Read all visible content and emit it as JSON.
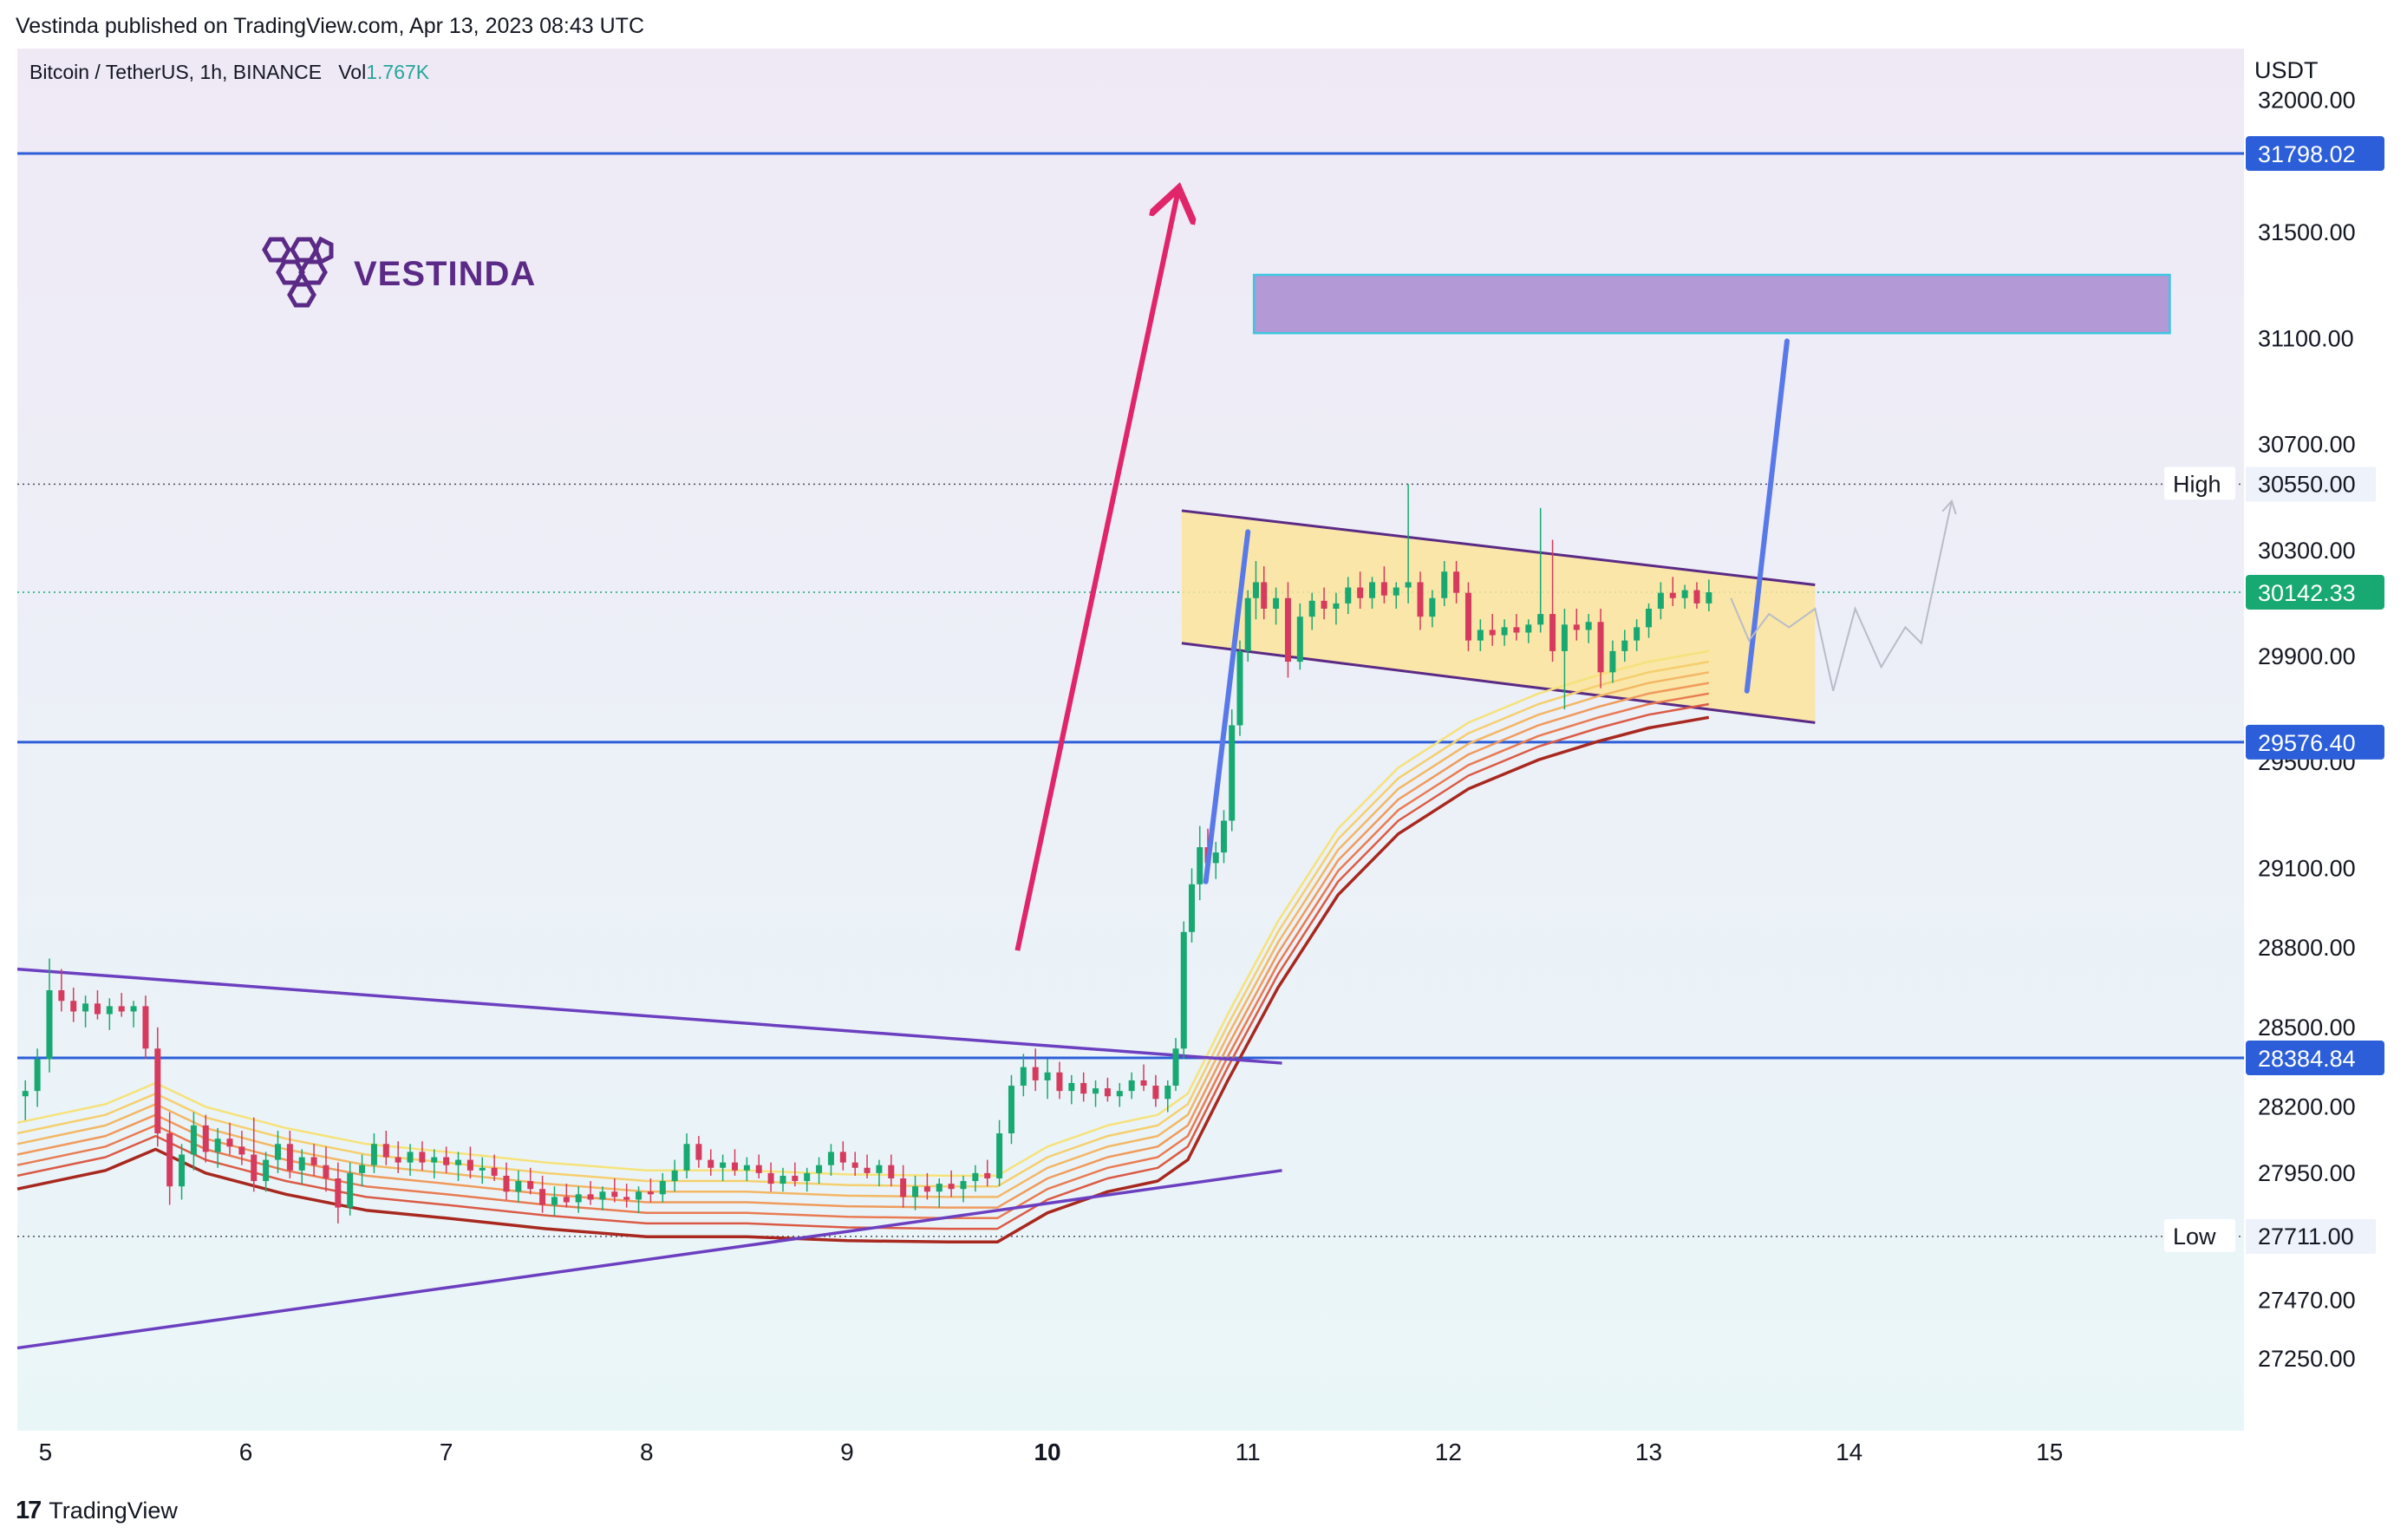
{
  "publisher": "Vestinda published on TradingView.com, Apr 13, 2023 08:43 UTC",
  "legend": {
    "symbol": "Bitcoin / TetherUS, 1h, BINANCE",
    "vol_label": "Vol",
    "vol_value": "1.767K"
  },
  "brand": {
    "name": "VESTINDA",
    "icon": "hexagon-cluster-logo-icon"
  },
  "footer": {
    "logo_text": "TradingView",
    "logo_icon": "tradingview-logo-icon"
  },
  "colors": {
    "background_top": "#efe9f6",
    "background_bottom": "#e9f7f8",
    "horizontal_level": "#2b5ed8",
    "trend_line": "#6c3fc0",
    "impulse_arrow": "#e0256a",
    "projection": "#5a79e8",
    "flag_fill": "#fbe49a",
    "target_zone": "#b39ad6",
    "target_zone_border": "#3ec6e0",
    "up_candle": "#17a971",
    "down_candle": "#d63a5c",
    "current_price_badge": "#17a971"
  },
  "chart_data": {
    "type": "candlestick",
    "symbol": "Bitcoin / TetherUS",
    "interval": "1h",
    "exchange": "BINANCE",
    "currency_label": "USDT",
    "x_ticks": [
      {
        "label": "5",
        "day": 5,
        "bold": false
      },
      {
        "label": "6",
        "day": 6,
        "bold": false
      },
      {
        "label": "7",
        "day": 7,
        "bold": false
      },
      {
        "label": "8",
        "day": 8,
        "bold": false
      },
      {
        "label": "9",
        "day": 9,
        "bold": false
      },
      {
        "label": "10",
        "day": 10,
        "bold": true
      },
      {
        "label": "11",
        "day": 11,
        "bold": false
      },
      {
        "label": "12",
        "day": 12,
        "bold": false
      },
      {
        "label": "13",
        "day": 13,
        "bold": false
      },
      {
        "label": "14",
        "day": 14,
        "bold": false
      },
      {
        "label": "15",
        "day": 15,
        "bold": false
      }
    ],
    "x_range": [
      4.86,
      15.97
    ],
    "y_ticks": [
      "32000.00",
      "31500.00",
      "31100.00",
      "30700.00",
      "30300.00",
      "29900.00",
      "29500.00",
      "29100.00",
      "28800.00",
      "28500.00",
      "28200.00",
      "27950.00",
      "27470.00",
      "27250.00"
    ],
    "y_tick_values": [
      32000,
      31500,
      31100,
      30700,
      30300,
      29900,
      29500,
      29100,
      28800,
      28500,
      28200,
      27950,
      27470,
      27250
    ],
    "horizontal_levels": [
      {
        "label": "31798.02",
        "value": 31798.02
      },
      {
        "label": "29576.40",
        "value": 29576.4
      },
      {
        "label": "28384.84",
        "value": 28384.84
      }
    ],
    "high": {
      "label": "High",
      "value_label": "30550.00",
      "value": 30550
    },
    "low": {
      "label": "Low",
      "value_label": "27711.00",
      "value": 27711
    },
    "last_price": {
      "label": "30142.33",
      "value": 30142.33
    },
    "target_zone": {
      "x_start": 11.03,
      "x_end": 15.6,
      "top": 31340,
      "bottom": 31120
    },
    "flag_channel": {
      "x_start": 10.67,
      "x_end": 13.83,
      "top_start": 30450,
      "top_end": 30170,
      "bottom_start": 29950,
      "bottom_end": 29650
    },
    "trend_lines": [
      {
        "name": "descending-trend-line",
        "x1": 4.86,
        "y1": 28720,
        "x2": 11.17,
        "y2": 28365
      },
      {
        "name": "ascending-trend-line",
        "x1": 4.86,
        "y1": 27290,
        "x2": 11.17,
        "y2": 27960
      }
    ],
    "impulse_arrow": {
      "x1": 9.85,
      "y1": 28790,
      "x2": 10.65,
      "y2": 31650
    },
    "flagpole_line": {
      "x1": 10.79,
      "y1": 29050,
      "x2": 11.0,
      "y2": 30370
    },
    "projection_line": {
      "x1": 13.49,
      "y1": 29770,
      "x2": 13.69,
      "y2": 31090
    },
    "projected_path": [
      [
        13.41,
        30120
      ],
      [
        13.5,
        29960
      ],
      [
        13.6,
        30060
      ],
      [
        13.7,
        30010
      ],
      [
        13.83,
        30080
      ],
      [
        13.92,
        29770
      ],
      [
        14.03,
        30080
      ],
      [
        14.16,
        29860
      ],
      [
        14.28,
        30010
      ],
      [
        14.36,
        29950
      ],
      [
        14.51,
        30480
      ]
    ],
    "ribbon_offsets": [
      0,
      40,
      80,
      120,
      160,
      200,
      250
    ],
    "ribbon_colors": [
      "#f6e27a",
      "#f5cf6e",
      "#f3b765",
      "#f09a5c",
      "#e97b52",
      "#db5a45",
      "#a8281f"
    ],
    "ribbon": [
      [
        4.86,
        28140
      ],
      [
        5.3,
        28210
      ],
      [
        5.55,
        28290
      ],
      [
        5.8,
        28200
      ],
      [
        6.2,
        28120
      ],
      [
        6.6,
        28060
      ],
      [
        7.0,
        28030
      ],
      [
        7.5,
        27990
      ],
      [
        8.0,
        27960
      ],
      [
        8.5,
        27960
      ],
      [
        9.0,
        27945
      ],
      [
        9.5,
        27940
      ],
      [
        9.75,
        27940
      ],
      [
        10.0,
        28050
      ],
      [
        10.3,
        28130
      ],
      [
        10.55,
        28170
      ],
      [
        10.7,
        28250
      ],
      [
        10.9,
        28550
      ],
      [
        11.15,
        28900
      ],
      [
        11.45,
        29250
      ],
      [
        11.75,
        29480
      ],
      [
        12.1,
        29650
      ],
      [
        12.45,
        29760
      ],
      [
        12.75,
        29830
      ],
      [
        13.0,
        29880
      ],
      [
        13.3,
        29920
      ]
    ],
    "candles": [
      [
        4.9,
        28240,
        28300,
        28150,
        28260
      ],
      [
        4.96,
        28260,
        28420,
        28200,
        28380
      ],
      [
        5.02,
        28380,
        28760,
        28330,
        28640
      ],
      [
        5.08,
        28640,
        28720,
        28560,
        28600
      ],
      [
        5.14,
        28600,
        28650,
        28520,
        28560
      ],
      [
        5.2,
        28560,
        28620,
        28500,
        28590
      ],
      [
        5.26,
        28590,
        28640,
        28530,
        28550
      ],
      [
        5.32,
        28550,
        28610,
        28490,
        28580
      ],
      [
        5.38,
        28580,
        28630,
        28540,
        28560
      ],
      [
        5.44,
        28560,
        28600,
        28500,
        28580
      ],
      [
        5.5,
        28580,
        28620,
        28380,
        28420
      ],
      [
        5.56,
        28420,
        28500,
        28050,
        28100
      ],
      [
        5.62,
        28100,
        28180,
        27830,
        27900
      ],
      [
        5.68,
        27900,
        28060,
        27850,
        28020
      ],
      [
        5.74,
        28020,
        28180,
        27960,
        28130
      ],
      [
        5.8,
        28130,
        28170,
        27990,
        28030
      ],
      [
        5.86,
        28030,
        28120,
        27970,
        28080
      ],
      [
        5.92,
        28080,
        28140,
        28020,
        28050
      ],
      [
        5.98,
        28050,
        28110,
        27980,
        28020
      ],
      [
        6.04,
        28020,
        28160,
        27880,
        27920
      ],
      [
        6.1,
        27920,
        28030,
        27880,
        28000
      ],
      [
        6.16,
        28000,
        28110,
        27950,
        28060
      ],
      [
        6.22,
        28060,
        28110,
        27930,
        27960
      ],
      [
        6.28,
        27960,
        28040,
        27910,
        28010
      ],
      [
        6.34,
        28010,
        28060,
        27940,
        27980
      ],
      [
        6.4,
        27980,
        28050,
        27880,
        27930
      ],
      [
        6.46,
        27930,
        27990,
        27760,
        27820
      ],
      [
        6.52,
        27820,
        27990,
        27790,
        27950
      ],
      [
        6.58,
        27950,
        28020,
        27900,
        27980
      ],
      [
        6.64,
        27980,
        28100,
        27950,
        28060
      ],
      [
        6.7,
        28060,
        28110,
        27980,
        28010
      ],
      [
        6.76,
        28010,
        28070,
        27950,
        27990
      ],
      [
        6.82,
        27990,
        28060,
        27940,
        28030
      ],
      [
        6.88,
        28030,
        28070,
        27960,
        27990
      ],
      [
        6.94,
        27990,
        28040,
        27930,
        28010
      ],
      [
        7.0,
        28010,
        28050,
        27950,
        27980
      ],
      [
        7.06,
        27980,
        28030,
        27920,
        28000
      ],
      [
        7.12,
        28000,
        28050,
        27930,
        27960
      ],
      [
        7.18,
        27960,
        28010,
        27910,
        27970
      ],
      [
        7.24,
        27970,
        28020,
        27920,
        27940
      ],
      [
        7.3,
        27940,
        27990,
        27850,
        27880
      ],
      [
        7.36,
        27880,
        27960,
        27840,
        27920
      ],
      [
        7.42,
        27920,
        27970,
        27870,
        27890
      ],
      [
        7.48,
        27890,
        27940,
        27800,
        27830
      ],
      [
        7.54,
        27830,
        27900,
        27790,
        27860
      ],
      [
        7.6,
        27860,
        27910,
        27820,
        27840
      ],
      [
        7.66,
        27840,
        27900,
        27800,
        27870
      ],
      [
        7.72,
        27870,
        27920,
        27830,
        27850
      ],
      [
        7.78,
        27850,
        27900,
        27810,
        27880
      ],
      [
        7.84,
        27880,
        27930,
        27840,
        27860
      ],
      [
        7.9,
        27860,
        27910,
        27820,
        27850
      ],
      [
        7.96,
        27850,
        27900,
        27800,
        27880
      ],
      [
        8.02,
        27880,
        27930,
        27840,
        27870
      ],
      [
        8.08,
        27870,
        27950,
        27840,
        27920
      ],
      [
        8.14,
        27920,
        28000,
        27880,
        27960
      ],
      [
        8.2,
        27960,
        28100,
        27930,
        28060
      ],
      [
        8.26,
        28060,
        28090,
        27970,
        28000
      ],
      [
        8.32,
        28000,
        28040,
        27940,
        27970
      ],
      [
        8.38,
        27970,
        28020,
        27920,
        27990
      ],
      [
        8.44,
        27990,
        28040,
        27940,
        27960
      ],
      [
        8.5,
        27960,
        28010,
        27920,
        27980
      ],
      [
        8.56,
        27980,
        28020,
        27930,
        27950
      ],
      [
        8.62,
        27950,
        27990,
        27880,
        27910
      ],
      [
        8.68,
        27910,
        27970,
        27880,
        27940
      ],
      [
        8.74,
        27940,
        27990,
        27900,
        27920
      ],
      [
        8.8,
        27920,
        27970,
        27880,
        27950
      ],
      [
        8.86,
        27950,
        28010,
        27910,
        27980
      ],
      [
        8.92,
        27980,
        28060,
        27940,
        28030
      ],
      [
        8.98,
        28030,
        28070,
        27960,
        27990
      ],
      [
        9.04,
        27990,
        28030,
        27940,
        27970
      ],
      [
        9.1,
        27970,
        28020,
        27930,
        27950
      ],
      [
        9.16,
        27950,
        28000,
        27900,
        27980
      ],
      [
        9.22,
        27980,
        28020,
        27900,
        27930
      ],
      [
        9.28,
        27930,
        27980,
        27820,
        27860
      ],
      [
        9.34,
        27860,
        27940,
        27810,
        27900
      ],
      [
        9.4,
        27900,
        27950,
        27850,
        27880
      ],
      [
        9.46,
        27880,
        27930,
        27820,
        27910
      ],
      [
        9.52,
        27910,
        27960,
        27860,
        27890
      ],
      [
        9.58,
        27890,
        27940,
        27840,
        27920
      ],
      [
        9.64,
        27920,
        27980,
        27880,
        27950
      ],
      [
        9.7,
        27950,
        28000,
        27900,
        27930
      ],
      [
        9.76,
        27930,
        28150,
        27900,
        28100
      ],
      [
        9.82,
        28100,
        28320,
        28060,
        28280
      ],
      [
        9.88,
        28280,
        28400,
        28240,
        28350
      ],
      [
        9.94,
        28350,
        28420,
        28260,
        28300
      ],
      [
        10.0,
        28300,
        28380,
        28230,
        28330
      ],
      [
        10.06,
        28330,
        28370,
        28230,
        28260
      ],
      [
        10.12,
        28260,
        28320,
        28210,
        28290
      ],
      [
        10.18,
        28290,
        28330,
        28220,
        28250
      ],
      [
        10.24,
        28250,
        28300,
        28200,
        28270
      ],
      [
        10.3,
        28270,
        28310,
        28220,
        28240
      ],
      [
        10.36,
        28240,
        28290,
        28200,
        28260
      ],
      [
        10.42,
        28260,
        28330,
        28230,
        28300
      ],
      [
        10.48,
        28300,
        28360,
        28260,
        28280
      ],
      [
        10.54,
        28280,
        28320,
        28200,
        28230
      ],
      [
        10.6,
        28230,
        28300,
        28180,
        28280
      ],
      [
        10.64,
        28280,
        28460,
        28260,
        28420
      ],
      [
        10.68,
        28420,
        28900,
        28380,
        28860
      ],
      [
        10.72,
        28860,
        29100,
        28820,
        29040
      ],
      [
        10.76,
        29040,
        29260,
        28980,
        29180
      ],
      [
        10.8,
        29180,
        29250,
        29060,
        29120
      ],
      [
        10.84,
        29120,
        29200,
        29060,
        29160
      ],
      [
        10.88,
        29160,
        29320,
        29120,
        29280
      ],
      [
        10.92,
        29280,
        29700,
        29240,
        29640
      ],
      [
        10.96,
        29640,
        29960,
        29600,
        29920
      ],
      [
        11.0,
        29920,
        30150,
        29880,
        30120
      ],
      [
        11.04,
        30120,
        30260,
        30040,
        30180
      ],
      [
        11.08,
        30180,
        30240,
        30040,
        30080
      ],
      [
        11.14,
        30080,
        30160,
        30020,
        30120
      ],
      [
        11.2,
        30120,
        30180,
        29820,
        29880
      ],
      [
        11.26,
        29880,
        30100,
        29850,
        30050
      ],
      [
        11.32,
        30050,
        30140,
        30000,
        30110
      ],
      [
        11.38,
        30110,
        30160,
        30040,
        30080
      ],
      [
        11.44,
        30080,
        30140,
        30020,
        30100
      ],
      [
        11.5,
        30100,
        30200,
        30060,
        30160
      ],
      [
        11.56,
        30160,
        30220,
        30080,
        30120
      ],
      [
        11.62,
        30120,
        30200,
        30080,
        30180
      ],
      [
        11.68,
        30180,
        30240,
        30100,
        30130
      ],
      [
        11.74,
        30130,
        30180,
        30080,
        30160
      ],
      [
        11.8,
        30160,
        30550,
        30100,
        30180
      ],
      [
        11.86,
        30180,
        30220,
        30000,
        30050
      ],
      [
        11.92,
        30050,
        30150,
        30010,
        30120
      ],
      [
        11.98,
        30120,
        30260,
        30090,
        30220
      ],
      [
        12.04,
        30220,
        30260,
        30100,
        30140
      ],
      [
        12.1,
        30140,
        30180,
        29920,
        29960
      ],
      [
        12.16,
        29960,
        30040,
        29920,
        30000
      ],
      [
        12.22,
        30000,
        30060,
        29940,
        29980
      ],
      [
        12.28,
        29980,
        30040,
        29940,
        30010
      ],
      [
        12.34,
        30010,
        30060,
        29960,
        29990
      ],
      [
        12.4,
        29990,
        30040,
        29950,
        30020
      ],
      [
        12.46,
        30020,
        30460,
        29990,
        30060
      ],
      [
        12.52,
        30060,
        30340,
        29880,
        29920
      ],
      [
        12.58,
        29920,
        30080,
        29700,
        30020
      ],
      [
        12.64,
        30020,
        30080,
        29960,
        30000
      ],
      [
        12.7,
        30000,
        30060,
        29950,
        30030
      ],
      [
        12.76,
        30030,
        30080,
        29780,
        29840
      ],
      [
        12.82,
        29840,
        29960,
        29800,
        29920
      ],
      [
        12.88,
        29920,
        30000,
        29880,
        29960
      ],
      [
        12.94,
        29960,
        30040,
        29920,
        30010
      ],
      [
        13.0,
        30010,
        30100,
        29970,
        30080
      ],
      [
        13.06,
        30080,
        30180,
        30040,
        30140
      ],
      [
        13.12,
        30140,
        30200,
        30090,
        30120
      ],
      [
        13.18,
        30120,
        30170,
        30080,
        30150
      ],
      [
        13.24,
        30150,
        30180,
        30080,
        30100
      ],
      [
        13.3,
        30100,
        30190,
        30070,
        30142
      ]
    ]
  }
}
